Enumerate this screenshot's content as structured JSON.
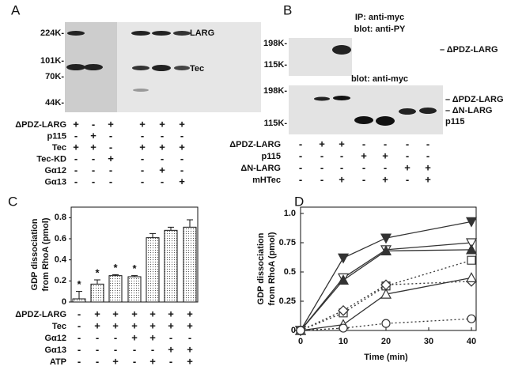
{
  "panel_a": {
    "label": "A",
    "markers": [
      "224K-",
      "101K-",
      "70K-",
      "44K-"
    ],
    "bands": [
      "LARG",
      "Tec"
    ],
    "rows": [
      {
        "name": "ΔPDZ-LARG",
        "signs": [
          "+",
          "-",
          "+",
          "+",
          "+",
          "+"
        ]
      },
      {
        "name": "p115",
        "signs": [
          "-",
          "+",
          "-",
          "-",
          "-",
          "-"
        ]
      },
      {
        "name": "Tec",
        "signs": [
          "+",
          "+",
          "-",
          "+",
          "+",
          "+"
        ]
      },
      {
        "name": "Tec-KD",
        "signs": [
          "-",
          "-",
          "+",
          "-",
          "-",
          "-"
        ]
      },
      {
        "name": "Gα12",
        "signs": [
          "-",
          "-",
          "-",
          "-",
          "+",
          "-"
        ]
      },
      {
        "name": "Gα13",
        "signs": [
          "-",
          "-",
          "-",
          "-",
          "-",
          "+"
        ]
      }
    ]
  },
  "panel_b": {
    "label": "B",
    "ip": "IP: anti-myc",
    "blot_top": "blot: anti-PY",
    "markers_top": [
      "198K-",
      "115K-"
    ],
    "bands_top": [
      "– ΔPDZ-LARG"
    ],
    "blot_bottom": "blot: anti-myc",
    "markers_bottom": [
      "198K-",
      "115K-"
    ],
    "bands_bottom": [
      "– ΔPDZ-LARG",
      "– ΔN-LARG",
      "p115"
    ],
    "rows": [
      {
        "name": "ΔPDZ-LARG",
        "signs": [
          "-",
          "+",
          "+",
          "-",
          "-",
          "-",
          "-"
        ]
      },
      {
        "name": "p115",
        "signs": [
          "-",
          "-",
          "-",
          "+",
          "+",
          "-",
          "-"
        ]
      },
      {
        "name": "ΔN-LARG",
        "signs": [
          "-",
          "-",
          "-",
          "-",
          "-",
          "+",
          "+"
        ]
      },
      {
        "name": "mHTec",
        "signs": [
          "-",
          "-",
          "+",
          "-",
          "+",
          "-",
          "+"
        ]
      }
    ]
  },
  "chart_data": [
    {
      "type": "bar",
      "label": "C",
      "y_label": [
        "GDP dissociation",
        "from RhoA (pmol)"
      ],
      "values": [
        0.03,
        0.17,
        0.25,
        0.24,
        0.61,
        0.68,
        0.71
      ],
      "errors": [
        0.07,
        0.04,
        0.01,
        0.01,
        0.04,
        0.03,
        0.07
      ],
      "annotations": [
        "*",
        "*",
        "*",
        "*",
        null,
        null,
        null
      ],
      "color": "#ffffff",
      "ylim": [
        0,
        0.9
      ],
      "yticks": [
        0,
        0.2,
        0.4,
        0.6,
        0.8
      ],
      "rows": [
        {
          "name": "ΔPDZ-LARG",
          "signs": [
            "-",
            "+",
            "+",
            "+",
            "+",
            "+",
            "+"
          ]
        },
        {
          "name": "Tec",
          "signs": [
            "-",
            "+",
            "+",
            "+",
            "+",
            "+",
            "+"
          ]
        },
        {
          "name": "Gα12",
          "signs": [
            "-",
            "-",
            "-",
            "+",
            "+",
            "-",
            "-"
          ]
        },
        {
          "name": "Gα13",
          "signs": [
            "-",
            "-",
            "-",
            "-",
            "-",
            "+",
            "+"
          ]
        },
        {
          "name": "ATP",
          "signs": [
            "-",
            "-",
            "+",
            "-",
            "+",
            "-",
            "+"
          ]
        }
      ]
    },
    {
      "type": "line",
      "label": "D",
      "y_label": [
        "GDP dissociation",
        "from RhoA (pmol)"
      ],
      "x_label": "Time (min)",
      "x": [
        0,
        10,
        20,
        40
      ],
      "xlim": [
        0,
        40
      ],
      "xticks": [
        0,
        10,
        20,
        30,
        40
      ],
      "ylim": [
        0,
        1
      ],
      "yticks": [
        0,
        0.25,
        0.5,
        0.75,
        {
          "value": 1,
          "label": "1.0"
        }
      ],
      "series": [
        {
          "color": "#333333",
          "marker": "triangle-down",
          "filled": true,
          "dotted": false,
          "values": [
            0,
            0.62,
            0.79,
            0.93
          ]
        },
        {
          "color": "#333333",
          "marker": "triangle-down",
          "filled": false,
          "dotted": false,
          "values": [
            0,
            0.45,
            0.69,
            0.75
          ]
        },
        {
          "color": "#333333",
          "marker": "triangle-up",
          "filled": true,
          "dotted": false,
          "values": [
            0,
            0.43,
            0.68,
            0.69
          ]
        },
        {
          "color": "#333333",
          "marker": "square",
          "filled": false,
          "dotted": true,
          "values": [
            0,
            0.15,
            0.38,
            0.6
          ]
        },
        {
          "color": "#333333",
          "marker": "diamond",
          "filled": false,
          "dotted": true,
          "values": [
            0,
            0.17,
            0.39,
            0.42
          ]
        },
        {
          "color": "#333333",
          "marker": "triangle-up",
          "filled": false,
          "dotted": false,
          "values": [
            0,
            0.05,
            0.31,
            0.45
          ]
        },
        {
          "color": "#333333",
          "marker": "circle",
          "filled": false,
          "dotted": true,
          "values": [
            0,
            0.02,
            0.06,
            0.1
          ]
        }
      ]
    }
  ]
}
